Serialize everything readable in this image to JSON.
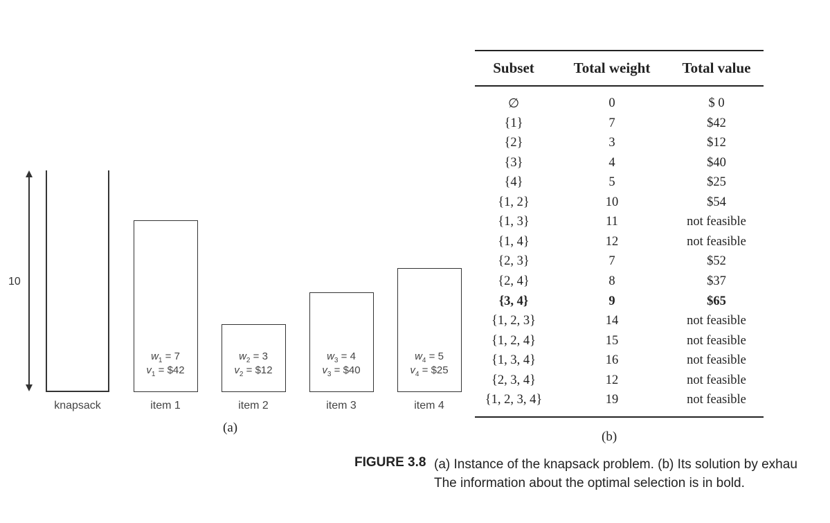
{
  "part_a": {
    "capacity_label": "10",
    "knapsack_label": "knapsack",
    "part_label": "(a)",
    "items": [
      {
        "w_base": "w",
        "w_sub": "1",
        "w_val": " = 7",
        "v_base": "v",
        "v_sub": "1",
        "v_val": " = $42",
        "label": "item 1"
      },
      {
        "w_base": "w",
        "w_sub": "2",
        "w_val": " = 3",
        "v_base": "v",
        "v_sub": "2",
        "v_val": " = $12",
        "label": "item 2"
      },
      {
        "w_base": "w",
        "w_sub": "3",
        "w_val": " = 4",
        "v_base": "v",
        "v_sub": "3",
        "v_val": " = $40",
        "label": "item 3"
      },
      {
        "w_base": "w",
        "w_sub": "4",
        "w_val": " = 5",
        "v_base": "v",
        "v_sub": "4",
        "v_val": " = $25",
        "label": "item 4"
      }
    ]
  },
  "part_b": {
    "part_label": "(b)",
    "headers": [
      "Subset",
      "Total weight",
      "Total value"
    ],
    "rows": [
      {
        "subset": "∅",
        "weight": "0",
        "value": "$ 0",
        "bold": false
      },
      {
        "subset": "{1}",
        "weight": "7",
        "value": "$42",
        "bold": false
      },
      {
        "subset": "{2}",
        "weight": "3",
        "value": "$12",
        "bold": false
      },
      {
        "subset": "{3}",
        "weight": "4",
        "value": "$40",
        "bold": false
      },
      {
        "subset": "{4}",
        "weight": "5",
        "value": "$25",
        "bold": false
      },
      {
        "subset": "{1, 2}",
        "weight": "10",
        "value": "$54",
        "bold": false
      },
      {
        "subset": "{1, 3}",
        "weight": "11",
        "value": "not feasible",
        "bold": false
      },
      {
        "subset": "{1, 4}",
        "weight": "12",
        "value": "not feasible",
        "bold": false
      },
      {
        "subset": "{2, 3}",
        "weight": "7",
        "value": "$52",
        "bold": false
      },
      {
        "subset": "{2, 4}",
        "weight": "8",
        "value": "$37",
        "bold": false
      },
      {
        "subset": "{3, 4}",
        "weight": "9",
        "value": "$65",
        "bold": true
      },
      {
        "subset": "{1, 2, 3}",
        "weight": "14",
        "value": "not feasible",
        "bold": false
      },
      {
        "subset": "{1, 2, 4}",
        "weight": "15",
        "value": "not feasible",
        "bold": false
      },
      {
        "subset": "{1, 3, 4}",
        "weight": "16",
        "value": "not feasible",
        "bold": false
      },
      {
        "subset": "{2, 3, 4}",
        "weight": "12",
        "value": "not feasible",
        "bold": false
      },
      {
        "subset": "{1, 2, 3, 4}",
        "weight": "19",
        "value": "not feasible",
        "bold": false
      }
    ]
  },
  "caption": {
    "label": "FIGURE 3.8",
    "line1": "(a) Instance of the knapsack problem. (b) Its solution by exhau",
    "line2": "The information about the optimal selection is in bold."
  }
}
